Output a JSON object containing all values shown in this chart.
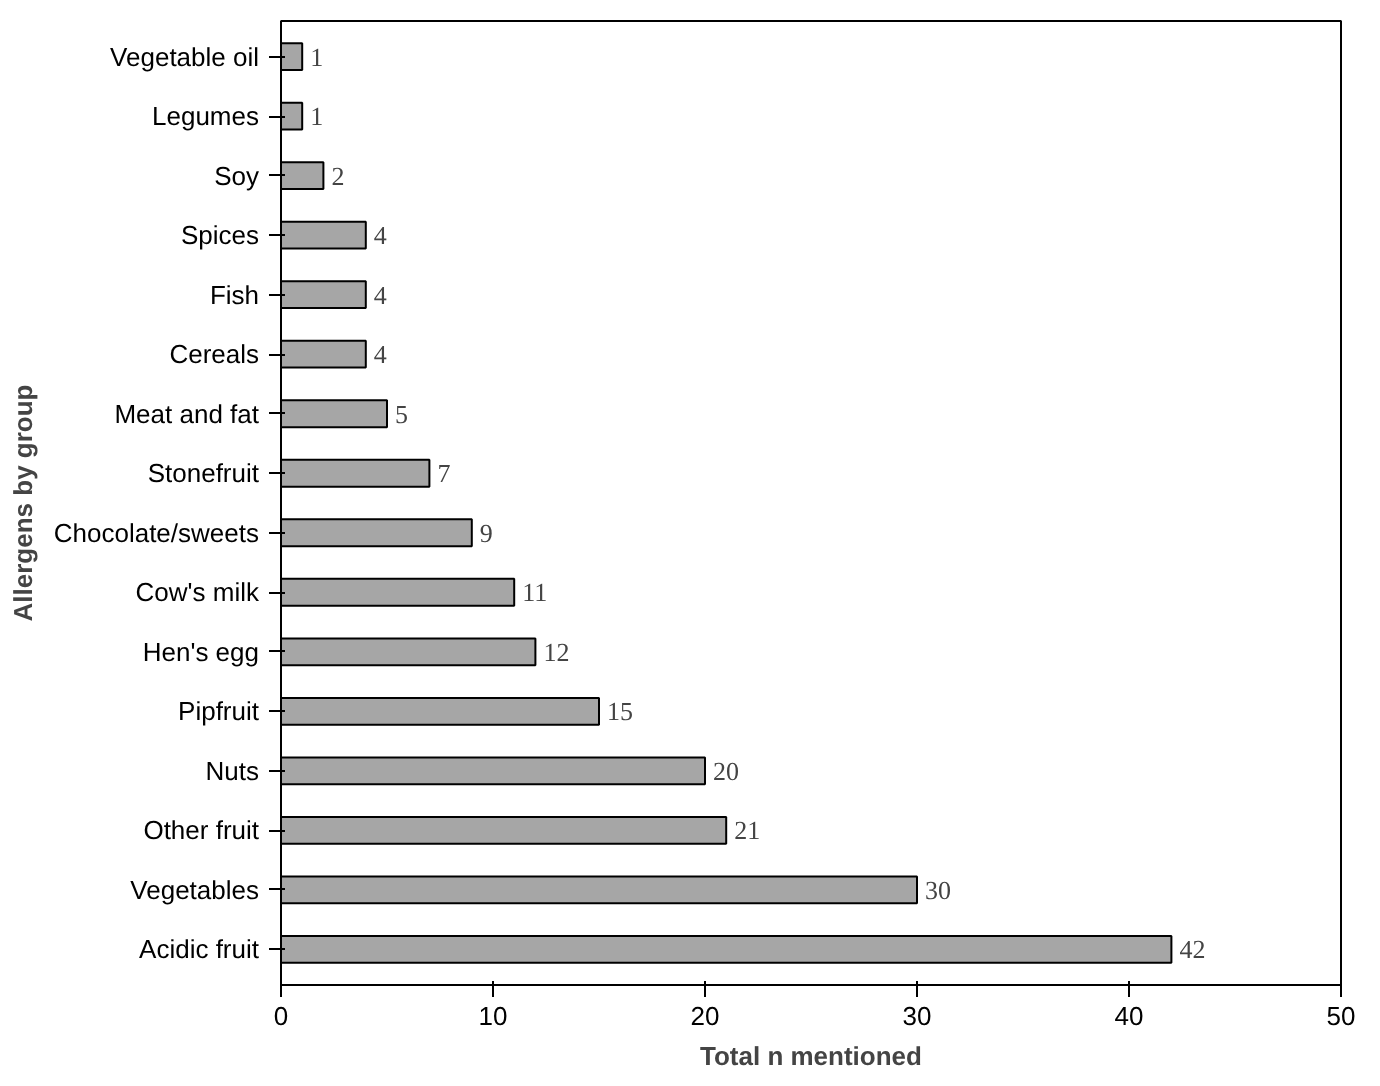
{
  "chart_data": {
    "type": "bar",
    "orientation": "horizontal",
    "xlabel": "Total n mentioned",
    "ylabel": "Allergens by group",
    "categories": [
      "Vegetable oil",
      "Legumes",
      "Soy",
      "Spices",
      "Fish",
      "Cereals",
      "Meat and fat",
      "Stonefruit",
      "Chocolate/sweets",
      "Cow's milk",
      "Hen's egg",
      "Pipfruit",
      "Nuts",
      "Other fruit",
      "Vegetables",
      "Acidic fruit"
    ],
    "values": [
      1,
      1,
      2,
      4,
      4,
      4,
      5,
      7,
      9,
      11,
      12,
      15,
      20,
      21,
      30,
      42
    ],
    "color": "#a6a6a6",
    "xlim": [
      0,
      50
    ],
    "xticks": [
      0,
      10,
      20,
      30,
      40,
      50
    ],
    "data_labels": true,
    "grid": false
  }
}
